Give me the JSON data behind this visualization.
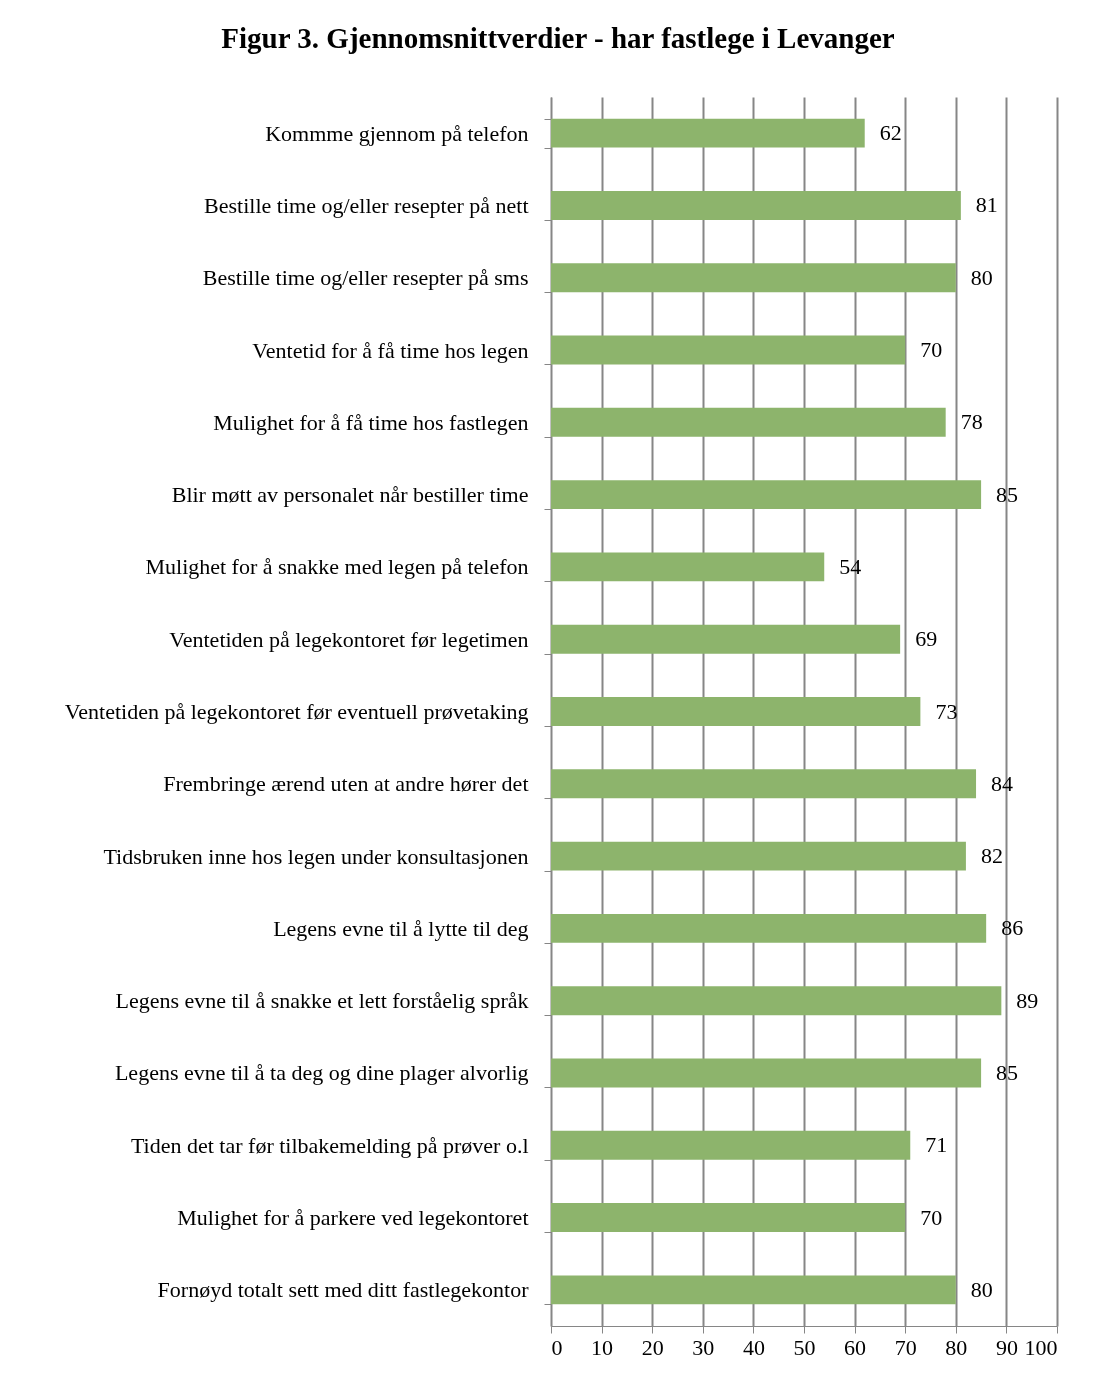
{
  "chart_data": {
    "type": "bar",
    "orientation": "horizontal",
    "title": "Figur 3. Gjennomsnittverdier - har fastlege i Levanger",
    "categories": [
      "Kommme gjennom på telefon",
      "Bestille time og/eller resepter på nett",
      "Bestille time og/eller resepter på sms",
      "Ventetid for å få time hos legen",
      "Mulighet for å få time hos fastlegen",
      "Blir møtt av personalet når bestiller time",
      "Mulighet for å snakke med legen på telefon",
      "Ventetiden på legekontoret før legetimen",
      "Ventetiden på legekontoret før eventuell prøvetaking",
      "Frembringe ærend uten at andre hører det",
      "Tidsbruken inne hos legen under konsultasjonen",
      "Legens evne til å lytte til deg",
      "Legens evne til å snakke et lett forståelig språk",
      "Legens evne til å ta deg og dine plager alvorlig",
      "Tiden det tar før tilbakemelding på prøver o.l",
      "Mulighet for å parkere ved legekontoret",
      "Fornøyd totalt sett med ditt fastlegekontor"
    ],
    "values": [
      62,
      81,
      80,
      70,
      78,
      85,
      54,
      69,
      73,
      84,
      82,
      86,
      89,
      85,
      71,
      70,
      80
    ],
    "color": "#8db46c",
    "xlim": [
      0,
      100
    ],
    "xticks": [
      0,
      10,
      20,
      30,
      40,
      50,
      60,
      70,
      80,
      90,
      100
    ],
    "grid": "x",
    "data_labels": true
  }
}
